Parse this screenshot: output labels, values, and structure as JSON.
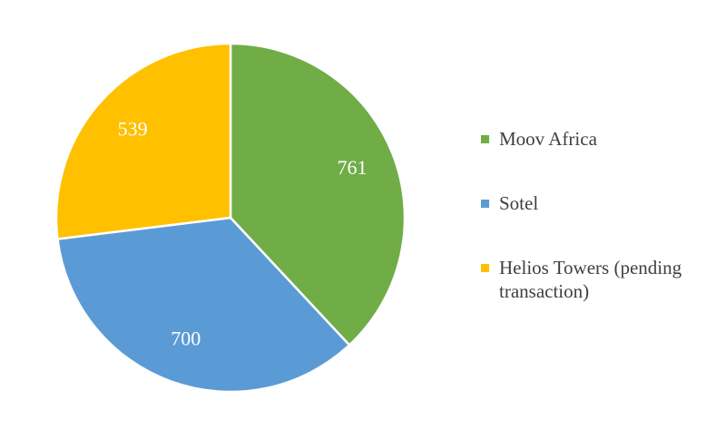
{
  "chart_data": {
    "type": "pie",
    "categories": [
      "Moov Africa",
      "Sotel",
      "Helios Towers (pending transaction)"
    ],
    "values": [
      761,
      700,
      539
    ],
    "colors": [
      "#70ad47",
      "#5b9bd5",
      "#ffc000"
    ],
    "legend": "right"
  }
}
